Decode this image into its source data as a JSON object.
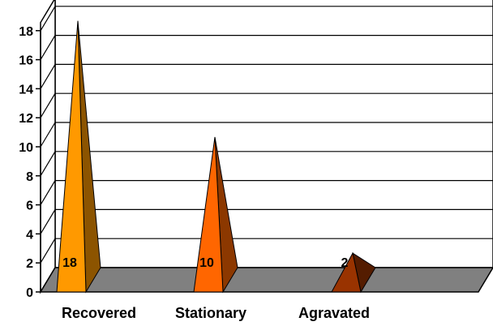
{
  "chart_data": {
    "type": "bar",
    "style": "3d-pyramid",
    "categories": [
      "Recovered",
      "Stationary",
      "Agravated"
    ],
    "values": [
      18,
      10,
      2
    ],
    "data_labels": [
      "18",
      "10",
      "2"
    ],
    "ylim": [
      0,
      18
    ],
    "yticks": [
      "0",
      "2",
      "4",
      "6",
      "8",
      "10",
      "12",
      "14",
      "16",
      "18"
    ],
    "title": "",
    "xlabel": "",
    "ylabel": "",
    "grid": true,
    "legend": "none",
    "colors": {
      "series": [
        "#ff9900",
        "#ff6600",
        "#993300"
      ],
      "floor": "#808080",
      "grid": "#000000",
      "background": "#ffffff"
    }
  }
}
